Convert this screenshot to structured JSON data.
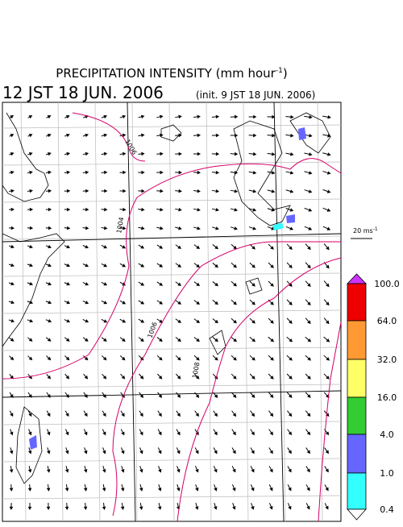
{
  "header": {
    "title": "PRECIPITATION INTENSITY (mm hour",
    "title_sup": "-1",
    "title_end": ")",
    "time": "12 JST 18 JUN. 2006",
    "init": "(init. 9 JST 18 JUN. 2006)"
  },
  "vector_scale": {
    "label": "20 ms",
    "label_sup": "-1"
  },
  "isobars": [
    "1004",
    "1006",
    "1008",
    "1006"
  ],
  "colorbar": {
    "labels": [
      "100.0",
      "64.0",
      "32.0",
      "16.0",
      "4.0",
      "1.0",
      "0.4"
    ],
    "colors": [
      "#cc33ff",
      "#ee0000",
      "#ff9933",
      "#ffff66",
      "#33cc33",
      "#6666ff",
      "#33ffff",
      "#ffffff"
    ]
  }
}
